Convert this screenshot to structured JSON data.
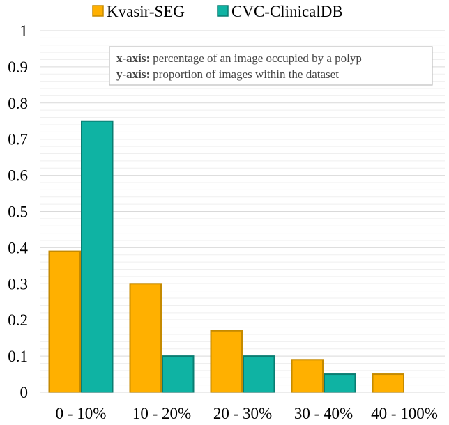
{
  "chart_data": {
    "type": "bar",
    "title": "",
    "xlabel": "",
    "ylabel": "",
    "categories": [
      "0 - 10%",
      "10 - 20%",
      "20 - 30%",
      "30 - 40%",
      "40 - 100%"
    ],
    "series": [
      {
        "name": "Kvasir-SEG",
        "values": [
          0.39,
          0.3,
          0.17,
          0.09,
          0.05
        ],
        "color": "#FFB000",
        "stroke": "#C58A00"
      },
      {
        "name": "CVC-ClinicalDB",
        "values": [
          0.75,
          0.1,
          0.1,
          0.05,
          0
        ],
        "color": "#0FB3A3",
        "stroke": "#0A7D72"
      }
    ],
    "ylim": [
      0,
      1
    ],
    "yticks": [
      "0",
      "0.1",
      "0.2",
      "0.3",
      "0.4",
      "0.5",
      "0.6",
      "0.7",
      "0.8",
      "0.9",
      "1"
    ],
    "grid": true,
    "legend_position": "top",
    "annotation": {
      "x_label": "x-axis:",
      "x_text": "percentage of an image occupied by a polyp",
      "y_label": "y-axis:",
      "y_text": "proportion of images within the dataset"
    }
  }
}
